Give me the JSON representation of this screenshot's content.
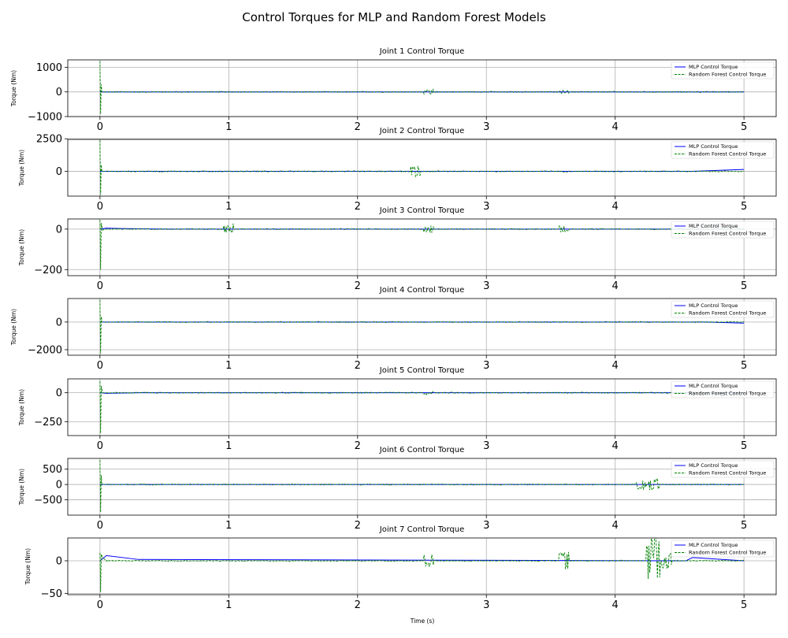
{
  "figure": {
    "title": "Control Torques for MLP and Random Forest Models",
    "xlabel": "Time (s)"
  },
  "legend": {
    "mlp": "MLP Control Torque",
    "rf": "Random Forest Control Torque"
  },
  "colors": {
    "mlp": "#0000ff",
    "rf": "#008000",
    "grid": "#b0b0b0"
  },
  "chart_data": [
    {
      "type": "line",
      "title": "Joint 1 Control Torque",
      "ylabel": "Torque (Nm)",
      "xlim": [
        -0.25,
        5.25
      ],
      "ylim": [
        -1000,
        1300
      ],
      "xticks": [
        0,
        1,
        2,
        3,
        4,
        5
      ],
      "yticks": [
        -1000,
        0,
        1000
      ],
      "ytick_labels": [
        "−1000",
        "0",
        "1000"
      ],
      "grid": true,
      "legend_position": "top-right",
      "series": [
        {
          "name": "MLP Control Torque",
          "style": "solid",
          "x": [
            0,
            1,
            2,
            3,
            4,
            5
          ],
          "y": [
            0,
            0,
            0,
            0,
            0,
            0
          ]
        },
        {
          "name": "Random Forest Control Torque",
          "style": "dashed",
          "x": [
            0,
            0.005,
            0.01,
            0.015,
            0.5,
            2.5,
            2.55,
            3.55,
            3.6,
            5.0
          ],
          "y": [
            1250,
            -900,
            300,
            0,
            0,
            0,
            90,
            0,
            -60,
            0
          ]
        }
      ]
    },
    {
      "type": "line",
      "title": "Joint 2 Control Torque",
      "ylabel": "Torque (Nm)",
      "xlim": [
        -0.25,
        5.25
      ],
      "ylim": [
        -1900,
        2450
      ],
      "xticks": [
        0,
        1,
        2,
        3,
        4,
        5
      ],
      "yticks": [
        0,
        2500
      ],
      "ytick_labels": [
        "0",
        "2500"
      ],
      "grid": true,
      "legend_position": "top-right",
      "series": [
        {
          "name": "MLP Control Torque",
          "style": "solid",
          "x": [
            0,
            4.6,
            5.0
          ],
          "y": [
            0,
            0,
            150
          ]
        },
        {
          "name": "Random Forest Control Torque",
          "style": "dashed",
          "x": [
            0,
            0.005,
            0.01,
            0.015,
            2.4,
            2.45,
            5.0
          ],
          "y": [
            2400,
            -1800,
            500,
            0,
            0,
            400,
            0
          ]
        }
      ]
    },
    {
      "type": "line",
      "title": "Joint 3 Control Torque",
      "ylabel": "Torque (Nm)",
      "xlim": [
        -0.25,
        5.25
      ],
      "ylim": [
        -230,
        50
      ],
      "xticks": [
        0,
        1,
        2,
        3,
        4,
        5
      ],
      "yticks": [
        -200,
        0
      ],
      "ytick_labels": [
        "−200",
        "0"
      ],
      "grid": true,
      "legend_position": "top-right",
      "series": [
        {
          "name": "MLP Control Torque",
          "style": "solid",
          "x": [
            0,
            0.05,
            0.15,
            0.5,
            5.0
          ],
          "y": [
            0,
            5,
            3,
            0,
            0
          ]
        },
        {
          "name": "Random Forest Control Torque",
          "style": "dashed",
          "x": [
            0,
            0.005,
            0.01,
            0.02,
            0.05,
            0.95,
            1.0,
            2.55,
            3.6,
            5.0
          ],
          "y": [
            45,
            -200,
            30,
            -5,
            0,
            0,
            -25,
            -20,
            15,
            0
          ]
        }
      ]
    },
    {
      "type": "line",
      "title": "Joint 4 Control Torque",
      "ylabel": "Torque (Nm)",
      "xlim": [
        -0.25,
        5.25
      ],
      "ylim": [
        -2400,
        1700
      ],
      "xticks": [
        0,
        1,
        2,
        3,
        4,
        5
      ],
      "yticks": [
        -2000,
        0
      ],
      "ytick_labels": [
        "−2000",
        "0"
      ],
      "grid": true,
      "legend_position": "top-right",
      "series": [
        {
          "name": "MLP Control Torque",
          "style": "solid",
          "x": [
            0,
            4.7,
            5.0
          ],
          "y": [
            0,
            0,
            -80
          ]
        },
        {
          "name": "Random Forest Control Torque",
          "style": "dashed",
          "x": [
            0,
            0.005,
            0.01,
            0.015,
            3.0,
            5.0
          ],
          "y": [
            1600,
            -2300,
            400,
            0,
            0,
            0
          ]
        }
      ]
    },
    {
      "type": "line",
      "title": "Joint 5 Control Torque",
      "ylabel": "Torque (Nm)",
      "xlim": [
        -0.25,
        5.25
      ],
      "ylim": [
        -370,
        120
      ],
      "xticks": [
        0,
        1,
        2,
        3,
        4,
        5
      ],
      "yticks": [
        -250,
        0
      ],
      "ytick_labels": [
        "−250",
        "0"
      ],
      "grid": true,
      "legend_position": "top-right",
      "series": [
        {
          "name": "MLP Control Torque",
          "style": "solid",
          "x": [
            0,
            0.05,
            0.3,
            5.0
          ],
          "y": [
            0,
            -5,
            0,
            0
          ]
        },
        {
          "name": "Random Forest Control Torque",
          "style": "dashed",
          "x": [
            0,
            0.005,
            0.01,
            0.02,
            2.55,
            5.0
          ],
          "y": [
            100,
            -350,
            60,
            0,
            15,
            0
          ]
        }
      ]
    },
    {
      "type": "line",
      "title": "Joint 6 Control Torque",
      "ylabel": "Torque (Nm)",
      "xlim": [
        -0.25,
        5.25
      ],
      "ylim": [
        -1000,
        850
      ],
      "xticks": [
        0,
        1,
        2,
        3,
        4,
        5
      ],
      "yticks": [
        -500,
        0,
        500
      ],
      "ytick_labels": [
        "−500",
        "0",
        "500"
      ],
      "grid": true,
      "legend_position": "top-right",
      "series": [
        {
          "name": "MLP Control Torque",
          "style": "solid",
          "x": [
            0,
            5.0
          ],
          "y": [
            0,
            0
          ]
        },
        {
          "name": "Random Forest Control Torque",
          "style": "dashed",
          "x": [
            0,
            0.005,
            0.01,
            0.015,
            4.2,
            4.3,
            5.0
          ],
          "y": [
            800,
            -900,
            300,
            0,
            150,
            -250,
            0
          ]
        }
      ]
    },
    {
      "type": "line",
      "title": "Joint 7 Control Torque",
      "ylabel": "Torque (Nm)",
      "xlim": [
        -0.25,
        5.25
      ],
      "ylim": [
        -52,
        35
      ],
      "xticks": [
        0,
        1,
        2,
        3,
        4,
        5
      ],
      "yticks": [
        -50,
        0
      ],
      "ytick_labels": [
        "−50",
        "0"
      ],
      "grid": true,
      "legend_position": "top-right",
      "series": [
        {
          "name": "MLP Control Torque",
          "style": "solid",
          "x": [
            0,
            0.05,
            0.3,
            4.55,
            4.6,
            5.0
          ],
          "y": [
            0,
            8,
            2,
            0,
            5,
            0
          ]
        },
        {
          "name": "Random Forest Control Torque",
          "style": "dashed",
          "x": [
            0,
            0.005,
            0.01,
            0.02,
            0.05,
            2.55,
            3.6,
            4.28,
            4.31,
            4.4,
            5.0
          ],
          "y": [
            12,
            -48,
            10,
            5,
            0,
            -10,
            15,
            30,
            -35,
            12,
            0
          ]
        }
      ]
    }
  ]
}
